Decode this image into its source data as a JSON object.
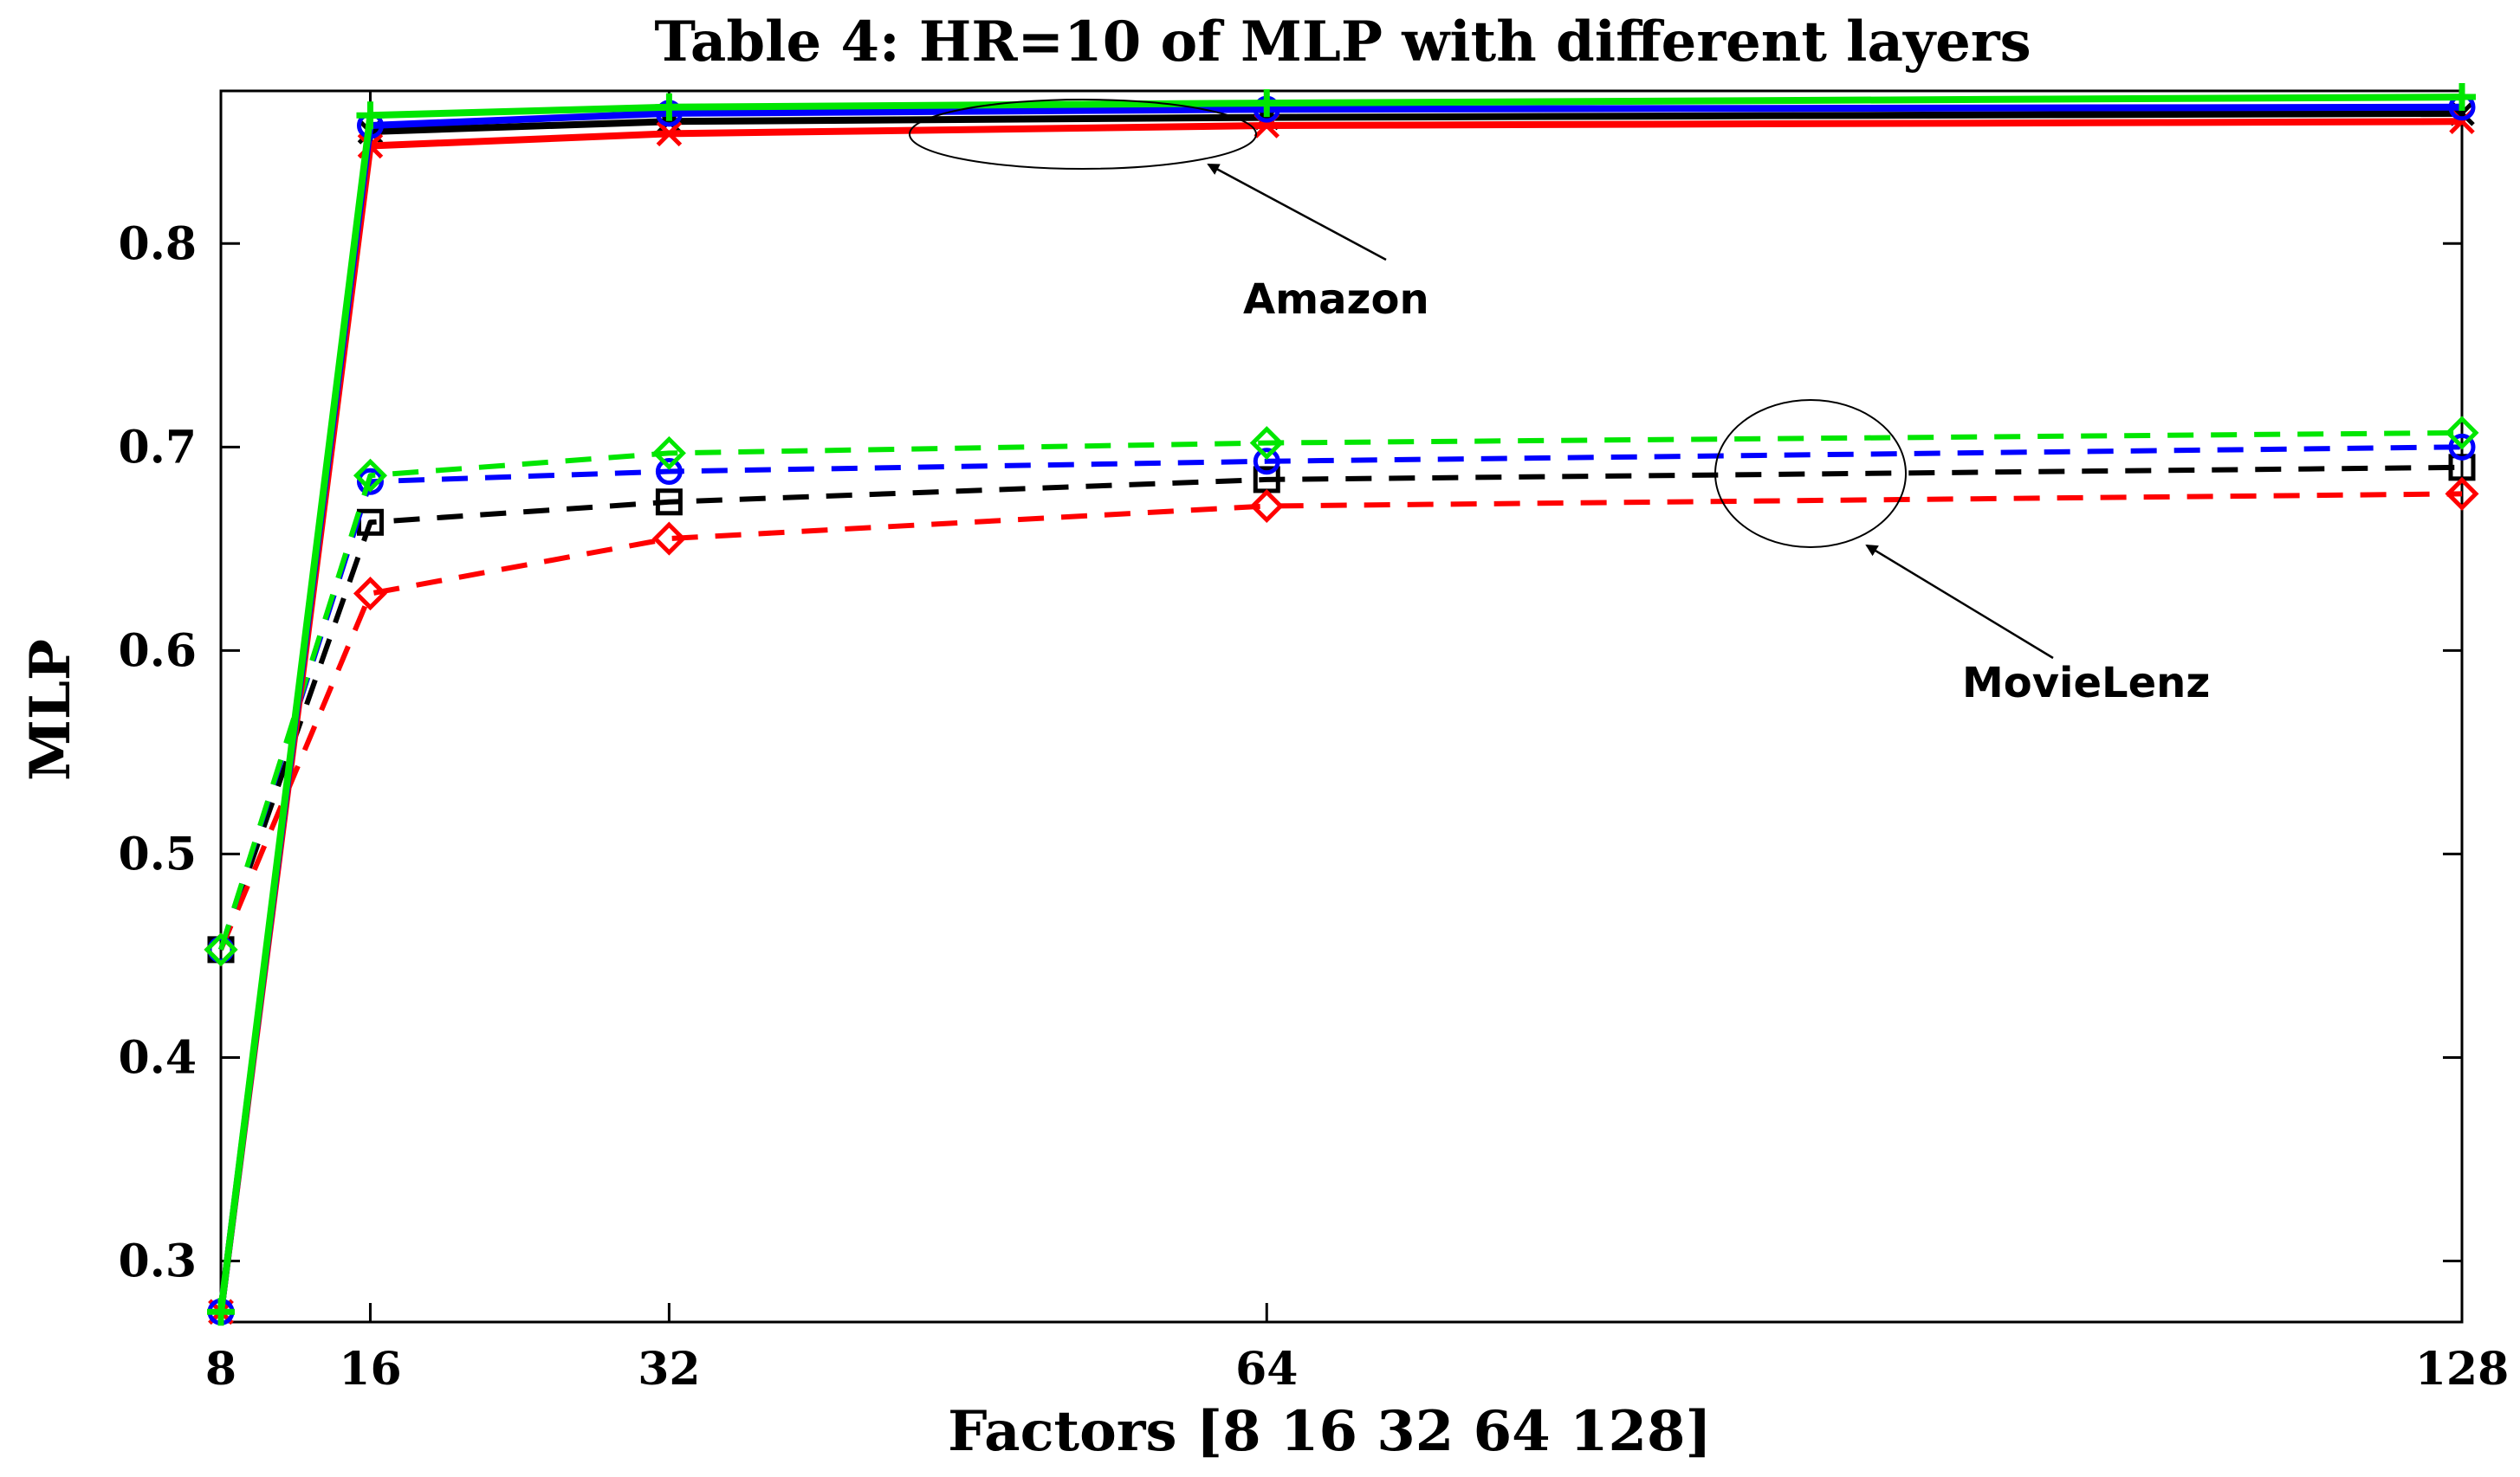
{
  "chart_data": {
    "type": "line",
    "title": "Table 4: HR=10 of MLP with different layers",
    "xlabel": "Factors [8 16 32 64 128]",
    "ylabel": "MLP",
    "x": [
      8,
      16,
      32,
      64,
      128
    ],
    "x_tick_labels": [
      "8",
      "16",
      "32",
      "64",
      "128"
    ],
    "xlim": [
      8,
      128
    ],
    "ylim": [
      0.27,
      0.875
    ],
    "y_ticks": [
      0.3,
      0.4,
      0.5,
      0.6,
      0.7,
      0.8
    ],
    "y_tick_labels": [
      "0.3",
      "0.4",
      "0.5",
      "0.6",
      "0.7",
      "0.8"
    ],
    "grid": false,
    "series": [
      {
        "name": "Amazon-black",
        "dataset": "Amazon",
        "color": "#000000",
        "style": "solid",
        "marker": "x",
        "values": [
          0.275,
          0.855,
          0.86,
          0.862,
          0.864
        ]
      },
      {
        "name": "Amazon-red",
        "dataset": "Amazon",
        "color": "#ff0000",
        "style": "solid",
        "marker": "x",
        "values": [
          0.275,
          0.848,
          0.854,
          0.858,
          0.86
        ]
      },
      {
        "name": "Amazon-blue",
        "dataset": "Amazon",
        "color": "#0000ff",
        "style": "solid",
        "marker": "circle",
        "values": [
          0.275,
          0.858,
          0.864,
          0.866,
          0.867
        ]
      },
      {
        "name": "Amazon-green",
        "dataset": "Amazon",
        "color": "#00e600",
        "style": "solid",
        "marker": "plus",
        "values": [
          0.275,
          0.863,
          0.867,
          0.869,
          0.872
        ]
      },
      {
        "name": "MovieLenz-black",
        "dataset": "MovieLenz",
        "color": "#000000",
        "style": "dashed",
        "marker": "square",
        "values": [
          0.453,
          0.663,
          0.673,
          0.684,
          0.69
        ]
      },
      {
        "name": "MovieLenz-red",
        "dataset": "MovieLenz",
        "color": "#ff0000",
        "style": "dashed",
        "marker": "diamond",
        "values": [
          0.453,
          0.628,
          0.655,
          0.671,
          0.677
        ]
      },
      {
        "name": "MovieLenz-blue",
        "dataset": "MovieLenz",
        "color": "#0000ff",
        "style": "dashed",
        "marker": "circle",
        "values": [
          0.453,
          0.683,
          0.688,
          0.693,
          0.7
        ]
      },
      {
        "name": "MovieLenz-green",
        "dataset": "MovieLenz",
        "color": "#00e600",
        "style": "dashed",
        "marker": "diamond",
        "values": [
          0.453,
          0.686,
          0.697,
          0.702,
          0.707
        ]
      }
    ],
    "annotations": [
      {
        "text": "Amazon",
        "target": "Amazon"
      },
      {
        "text": "MovieLenz",
        "target": "MovieLenz"
      }
    ]
  }
}
